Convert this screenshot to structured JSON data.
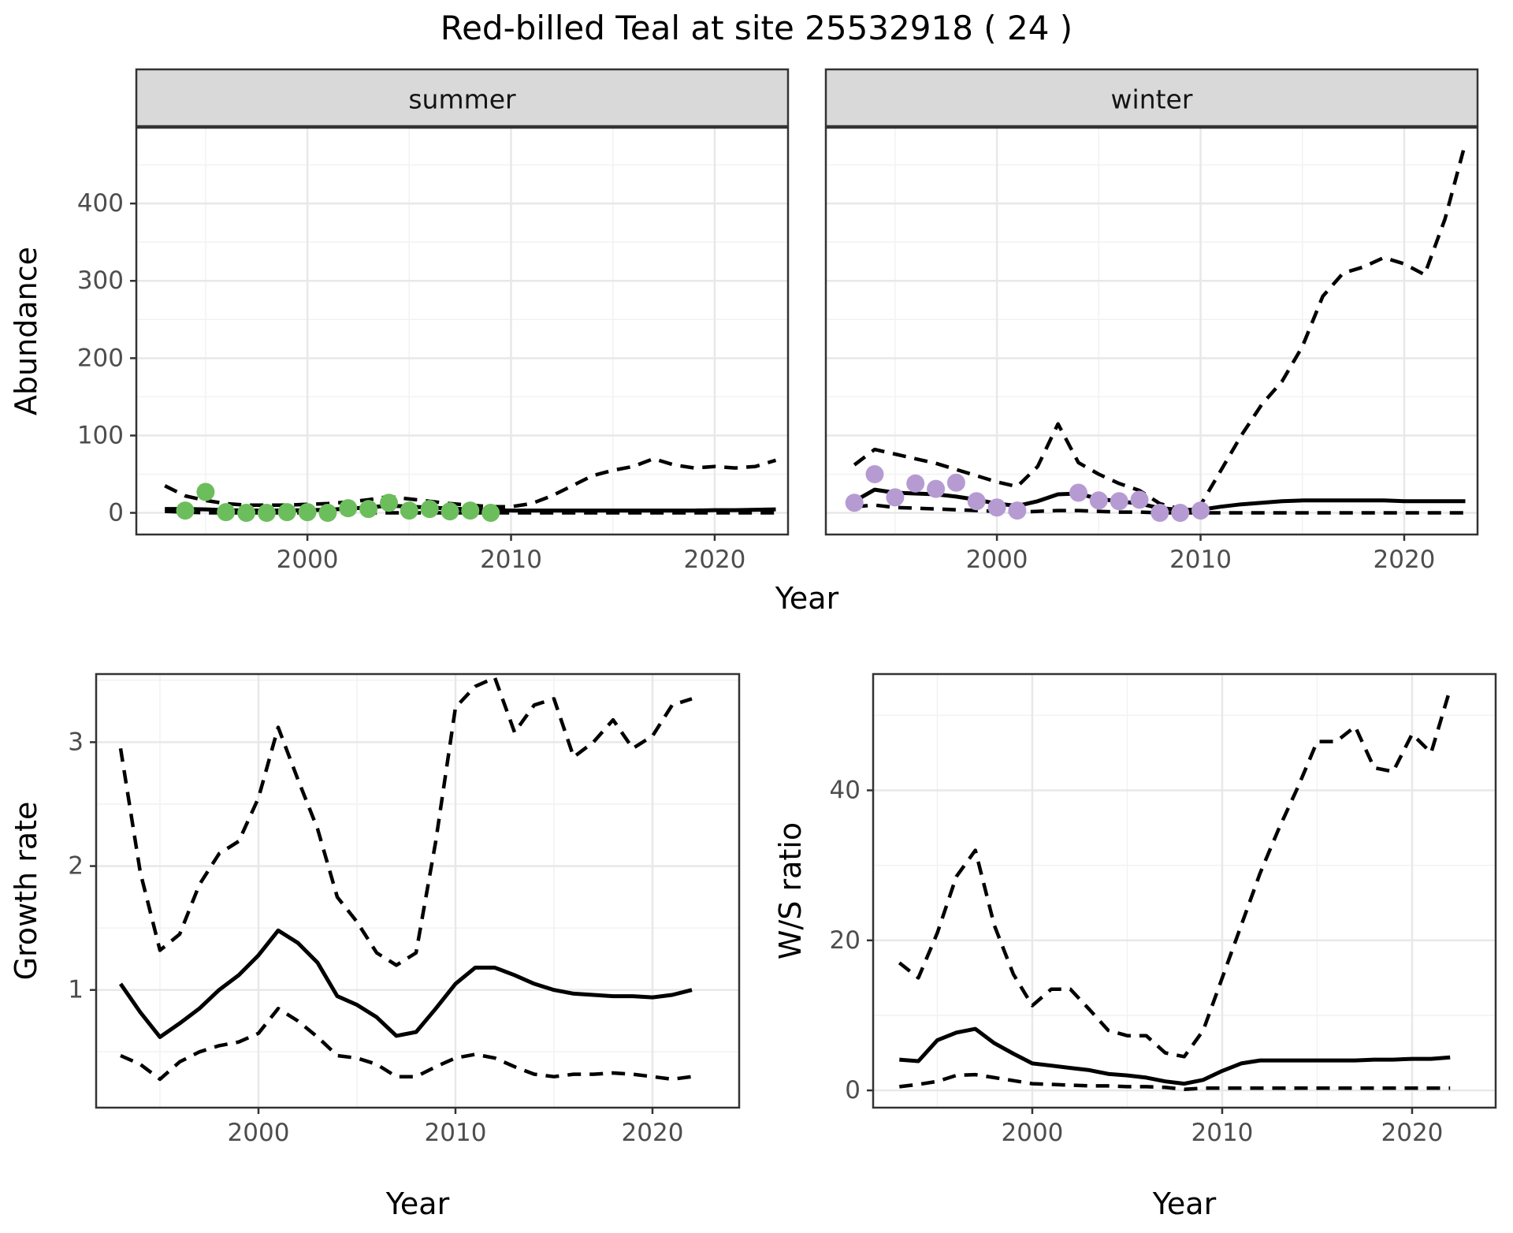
{
  "title": "Red-billed Teal at site 25532918 ( 24 )",
  "colors": {
    "summer_points": "#6CBE5C",
    "winter_points": "#B69BD3",
    "line": "#000000",
    "strip_fill": "#D9D9D9",
    "panel_border": "#333333",
    "grid_major": "#E8E8E8",
    "grid_minor": "#F2F2F2",
    "tick_text": "#4D4D4D"
  },
  "chart_data": [
    {
      "type": "line",
      "panel": "abundance_summer",
      "facet_label": "summer",
      "xlabel": "Year",
      "ylabel": "Abundance",
      "x_ticks": [
        2000,
        2010,
        2020
      ],
      "x_minor": [
        1995,
        2005,
        2015
      ],
      "y_ticks": [
        0,
        100,
        200,
        300,
        400
      ],
      "y_minor": [
        50,
        150,
        250,
        350,
        450
      ],
      "xlim": [
        1991.6,
        2023.6
      ],
      "ylim": [
        -28,
        498
      ],
      "grid": true,
      "legend": "none",
      "observations": {
        "color_key": "summer_points",
        "years": [
          1994,
          1995,
          1996,
          1997,
          1998,
          1999,
          2000,
          2001,
          2002,
          2003,
          2004,
          2005,
          2006,
          2007,
          2008,
          2009
        ],
        "values": [
          3,
          27,
          1,
          0,
          0,
          1,
          1,
          0,
          6,
          5,
          13,
          3,
          5,
          2,
          3,
          0
        ]
      },
      "series": [
        {
          "name": "lower_ci",
          "style": "dashed",
          "year_start": 1993,
          "values": [
            2,
            1,
            0,
            0,
            0,
            0,
            0,
            0,
            0,
            0,
            0,
            0,
            0,
            0,
            0,
            0,
            0,
            0,
            0,
            0,
            0,
            0,
            0,
            0,
            0,
            0,
            0,
            0,
            0,
            0,
            0
          ]
        },
        {
          "name": "upper_ci",
          "style": "dashed",
          "year_start": 1993,
          "values": [
            35,
            22,
            16,
            12,
            10,
            10,
            10,
            11,
            12,
            14,
            17,
            21,
            18,
            15,
            12,
            10,
            8,
            8,
            12,
            22,
            35,
            48,
            55,
            60,
            70,
            62,
            58,
            60,
            58,
            60,
            68
          ]
        },
        {
          "name": "median",
          "style": "solid",
          "year_start": 1993,
          "values": [
            5,
            5,
            4.5,
            3.5,
            3,
            3,
            3,
            3.5,
            4,
            5.5,
            7,
            9.5,
            8,
            7,
            5.5,
            4.5,
            3.5,
            3,
            3,
            3,
            3,
            3,
            3,
            3,
            3,
            3,
            3,
            3.5,
            3.5,
            4,
            4.5
          ]
        }
      ]
    },
    {
      "type": "line",
      "panel": "abundance_winter",
      "facet_label": "winter",
      "xlabel": "Year",
      "ylabel": "Abundance",
      "x_ticks": [
        2000,
        2010,
        2020
      ],
      "x_minor": [
        1995,
        2005,
        2015
      ],
      "y_ticks": [
        0,
        100,
        200,
        300,
        400
      ],
      "y_minor": [
        50,
        150,
        250,
        350,
        450
      ],
      "xlim": [
        1991.6,
        2023.6
      ],
      "ylim": [
        -28,
        498
      ],
      "grid": true,
      "legend": "none",
      "observations": {
        "color_key": "winter_points",
        "years": [
          1993,
          1994,
          1995,
          1996,
          1997,
          1998,
          1999,
          2000,
          2001,
          2004,
          2005,
          2006,
          2007,
          2008,
          2009,
          2010
        ],
        "values": [
          13,
          50,
          20,
          38,
          31,
          39,
          15,
          7,
          3,
          26,
          16,
          15,
          17,
          0,
          0,
          3
        ]
      },
      "series": [
        {
          "name": "lower_ci",
          "style": "dashed",
          "year_start": 1993,
          "values": [
            8,
            10,
            7,
            6,
            5,
            4,
            3,
            2,
            1,
            2,
            3,
            3,
            2,
            1,
            1,
            0,
            0,
            0,
            0,
            0,
            0,
            0,
            0,
            0,
            0,
            0,
            0,
            0,
            0,
            0,
            0
          ]
        },
        {
          "name": "upper_ci",
          "style": "dashed",
          "year_start": 1993,
          "values": [
            62,
            82,
            76,
            70,
            64,
            56,
            48,
            40,
            34,
            60,
            115,
            65,
            50,
            38,
            29,
            12,
            5,
            10,
            55,
            100,
            140,
            170,
            215,
            280,
            310,
            318,
            330,
            322,
            308,
            380,
            478
          ]
        },
        {
          "name": "median",
          "style": "solid",
          "year_start": 1993,
          "values": [
            15,
            30,
            26,
            25,
            24,
            21,
            17,
            12,
            9,
            15,
            24,
            25,
            18,
            15,
            12,
            6,
            4,
            4,
            8,
            11,
            13,
            15,
            16,
            16,
            16,
            16,
            16,
            15,
            15,
            15,
            15
          ]
        }
      ]
    },
    {
      "type": "line",
      "panel": "growth_rate",
      "facet_label": null,
      "xlabel": "Year",
      "ylabel": "Growth rate",
      "x_ticks": [
        2000,
        2010,
        2020
      ],
      "x_minor": [
        1995,
        2005,
        2015
      ],
      "y_ticks": [
        1,
        2,
        3
      ],
      "y_minor": [
        0.5,
        1.5,
        2.5,
        3.5
      ],
      "xlim": [
        1991.76,
        2024.4
      ],
      "ylim": [
        0.05,
        3.55
      ],
      "grid": true,
      "legend": "none",
      "series": [
        {
          "name": "lower_ci",
          "style": "dashed",
          "year_start": 1993,
          "values": [
            0.47,
            0.4,
            0.28,
            0.42,
            0.5,
            0.55,
            0.58,
            0.65,
            0.85,
            0.75,
            0.62,
            0.47,
            0.45,
            0.4,
            0.3,
            0.3,
            0.38,
            0.45,
            0.48,
            0.45,
            0.38,
            0.32,
            0.3,
            0.32,
            0.32,
            0.33,
            0.32,
            0.3,
            0.28,
            0.3
          ]
        },
        {
          "name": "upper_ci",
          "style": "dashed",
          "year_start": 1993,
          "values": [
            2.95,
            1.95,
            1.32,
            1.45,
            1.85,
            2.1,
            2.2,
            2.55,
            3.12,
            2.7,
            2.3,
            1.75,
            1.55,
            1.3,
            1.2,
            1.3,
            2.2,
            3.28,
            3.45,
            3.52,
            3.08,
            3.3,
            3.35,
            2.88,
            3.0,
            3.18,
            2.95,
            3.05,
            3.3,
            3.35
          ]
        },
        {
          "name": "median",
          "style": "solid",
          "year_start": 1993,
          "values": [
            1.05,
            0.82,
            0.62,
            0.73,
            0.85,
            1.0,
            1.12,
            1.28,
            1.48,
            1.38,
            1.22,
            0.95,
            0.88,
            0.78,
            0.63,
            0.66,
            0.85,
            1.05,
            1.18,
            1.18,
            1.12,
            1.05,
            1.0,
            0.97,
            0.96,
            0.95,
            0.95,
            0.94,
            0.96,
            1.0
          ]
        }
      ]
    },
    {
      "type": "line",
      "panel": "ws_ratio",
      "facet_label": null,
      "xlabel": "Year",
      "ylabel": "W/S ratio",
      "x_ticks": [
        2000,
        2010,
        2020
      ],
      "x_minor": [
        1995,
        2005,
        2015
      ],
      "y_ticks": [
        0,
        20,
        40
      ],
      "y_minor": [
        10,
        30,
        50
      ],
      "xlim": [
        1991.62,
        2024.4
      ],
      "ylim": [
        -2.3,
        55.5
      ],
      "grid": true,
      "legend": "none",
      "series": [
        {
          "name": "lower_ci",
          "style": "dashed",
          "year_start": 1993,
          "values": [
            0.5,
            0.8,
            1.2,
            2.0,
            2.1,
            1.7,
            1.3,
            0.9,
            0.8,
            0.7,
            0.6,
            0.6,
            0.5,
            0.5,
            0.4,
            0.15,
            0.3,
            0.3,
            0.3,
            0.3,
            0.3,
            0.3,
            0.3,
            0.3,
            0.3,
            0.3,
            0.3,
            0.3,
            0.3,
            0.3
          ]
        },
        {
          "name": "upper_ci",
          "style": "dashed",
          "year_start": 1993,
          "values": [
            17,
            15,
            21,
            28.5,
            32,
            22,
            15.5,
            11.3,
            13.5,
            13.5,
            10.8,
            8.0,
            7.3,
            7.3,
            5.0,
            4.5,
            8,
            15,
            22,
            29,
            35,
            40.5,
            46.5,
            46.5,
            48.5,
            43,
            42.5,
            47.5,
            45,
            53.5
          ]
        },
        {
          "name": "median",
          "style": "solid",
          "year_start": 1993,
          "values": [
            4.1,
            3.9,
            6.7,
            7.7,
            8.2,
            6.3,
            4.9,
            3.6,
            3.3,
            3.0,
            2.7,
            2.2,
            2.0,
            1.7,
            1.2,
            0.9,
            1.4,
            2.6,
            3.6,
            4.0,
            4.0,
            4.0,
            4.0,
            4.0,
            4.0,
            4.1,
            4.1,
            4.2,
            4.2,
            4.4
          ]
        }
      ]
    }
  ]
}
